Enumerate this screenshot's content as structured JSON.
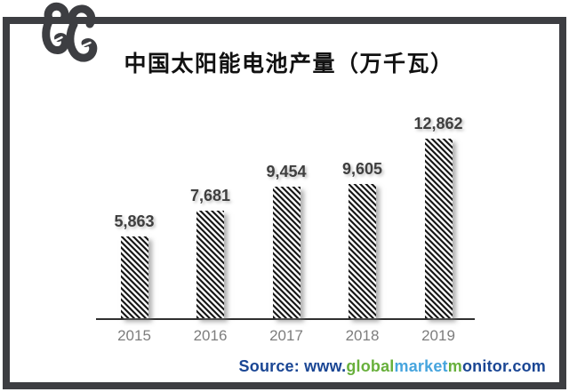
{
  "brand": {
    "logo_icon": "double-e-hook-logo",
    "frame_color": "#3d3e42"
  },
  "chart_data": {
    "type": "bar",
    "title": "中国太阳能电池产量（万千瓦）",
    "categories": [
      "2015",
      "2016",
      "2017",
      "2018",
      "2019"
    ],
    "values": [
      5863,
      7681,
      9454,
      9605,
      12862
    ],
    "value_labels": [
      "5,863",
      "7,681",
      "9,454",
      "9,605",
      "12,862"
    ],
    "xlabel": "",
    "ylabel": "",
    "ylim": [
      0,
      13000
    ],
    "grid": false,
    "legend": "none",
    "bar_fill": "diagonal-hatch-black-white",
    "value_label_color": "#3f3f3f",
    "tick_label_color": "#7d7d7d",
    "axis_color": "#303030"
  },
  "source": {
    "segments": [
      {
        "text": "Source: www.",
        "color": "#1a4694"
      },
      {
        "text": "global",
        "color": "#68b03c"
      },
      {
        "text": "market",
        "color": "#47a5de"
      },
      {
        "text": "m",
        "color": "#68b03c"
      },
      {
        "text": "onitor.com",
        "color": "#1a4694"
      }
    ]
  }
}
